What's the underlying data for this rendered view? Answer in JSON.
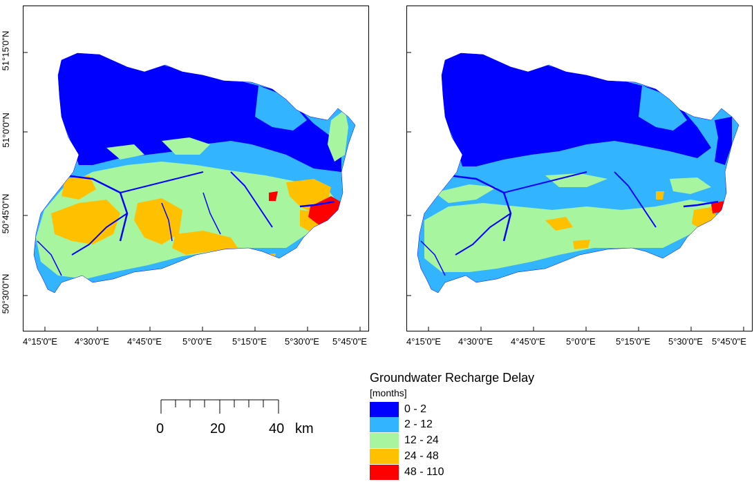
{
  "legend": {
    "title": "Groundwater Recharge Delay",
    "unit": "[months]",
    "classes": [
      {
        "label": "0 - 2",
        "color": "#0000ff"
      },
      {
        "label": "2 - 12",
        "color": "#33b4ff"
      },
      {
        "label": "12 - 24",
        "color": "#a8f5a0"
      },
      {
        "label": "24 - 48",
        "color": "#ffc000"
      },
      {
        "label": "48 - 110",
        "color": "#ff0000"
      }
    ]
  },
  "scale_bar": {
    "labels": [
      "0",
      "20",
      "40"
    ],
    "unit": "km"
  },
  "axes": {
    "x_ticks": [
      "4°15'0\"E",
      "4°30'0\"E",
      "4°45'0\"E",
      "5°0'0\"E",
      "5°15'0\"E",
      "5°30'0\"E",
      "5°45'0\"E"
    ],
    "y_ticks": [
      "51°15'0\"N",
      "51°0'0\"N",
      "50°45'0\"N",
      "50°30'0\"N"
    ]
  },
  "maps": [
    {
      "id": "left",
      "dominant_classes": [
        "0 - 2",
        "2 - 12",
        "12 - 24",
        "24 - 48",
        "48 - 110"
      ]
    },
    {
      "id": "right",
      "dominant_classes": [
        "0 - 2",
        "2 - 12",
        "12 - 24",
        "24 - 48",
        "48 - 110"
      ]
    }
  ]
}
